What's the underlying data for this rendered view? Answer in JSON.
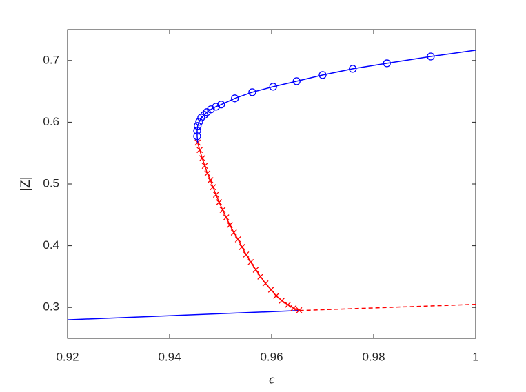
{
  "chart_data": {
    "type": "line",
    "xlabel": "ϵ",
    "ylabel": "|Z|",
    "xlim": [
      0.92,
      1
    ],
    "ylim": [
      0.25,
      0.75
    ],
    "xticks": [
      0.92,
      0.94,
      0.96,
      0.98,
      1
    ],
    "yticks": [
      0.3,
      0.4,
      0.5,
      0.6,
      0.7
    ],
    "grid": false,
    "box": true,
    "series": [
      {
        "color": "#0000ff",
        "line": "solid",
        "marker": null,
        "x": [
          0.92,
          0.9655
        ],
        "values": [
          0.28,
          0.295
        ]
      },
      {
        "color": "#ff0000",
        "line": "dashed",
        "marker": null,
        "x": [
          0.9655,
          1
        ],
        "values": [
          0.295,
          0.305
        ]
      },
      {
        "color": "#ff0000",
        "line": "solid",
        "marker": "x",
        "x": [
          0.9455,
          0.9459,
          0.9464,
          0.9469,
          0.9474,
          0.948,
          0.9485,
          0.9491,
          0.9497,
          0.9504,
          0.9511,
          0.9518,
          0.9526,
          0.9534,
          0.9542,
          0.955,
          0.9559,
          0.9569,
          0.9578,
          0.9588,
          0.9599,
          0.9609,
          0.962,
          0.9632,
          0.9643,
          0.9654
        ],
        "values": [
          0.567,
          0.555,
          0.5416,
          0.5294,
          0.5171,
          0.506,
          0.4948,
          0.4826,
          0.4703,
          0.4581,
          0.4458,
          0.4336,
          0.4213,
          0.4102,
          0.3979,
          0.3857,
          0.3734,
          0.3611,
          0.35,
          0.3389,
          0.3288,
          0.3188,
          0.311,
          0.3043,
          0.2987,
          0.2954
        ]
      },
      {
        "color": "#0000ff",
        "line": "solid",
        "marker": null,
        "x": [
          0.9455,
          0.9454,
          0.9454,
          0.9455,
          0.9458,
          0.9462,
          0.9468,
          0.9473,
          0.9481,
          0.9491,
          0.9501,
          0.9528,
          0.9562,
          0.9603,
          0.9649,
          0.97,
          0.9759,
          0.9826,
          0.9912,
          1
        ],
        "values": [
          0.567,
          0.5773,
          0.5862,
          0.594,
          0.6007,
          0.6074,
          0.6118,
          0.6163,
          0.6208,
          0.6252,
          0.6286,
          0.6386,
          0.6486,
          0.6575,
          0.6664,
          0.6765,
          0.6865,
          0.6954,
          0.7065,
          0.7166
        ]
      },
      {
        "color": "#0000ff",
        "line": "none",
        "marker": "o",
        "x": [
          0.9454,
          0.9454,
          0.9455,
          0.9458,
          0.9462,
          0.9468,
          0.9473,
          0.9481,
          0.9491,
          0.9501,
          0.9528,
          0.9562,
          0.9603,
          0.9649,
          0.97,
          0.9759,
          0.9826,
          0.9912
        ],
        "values": [
          0.5773,
          0.5862,
          0.594,
          0.6007,
          0.6074,
          0.6118,
          0.6163,
          0.6208,
          0.6252,
          0.6286,
          0.6386,
          0.6486,
          0.6575,
          0.6664,
          0.6765,
          0.6865,
          0.6954,
          0.7065
        ]
      }
    ]
  }
}
